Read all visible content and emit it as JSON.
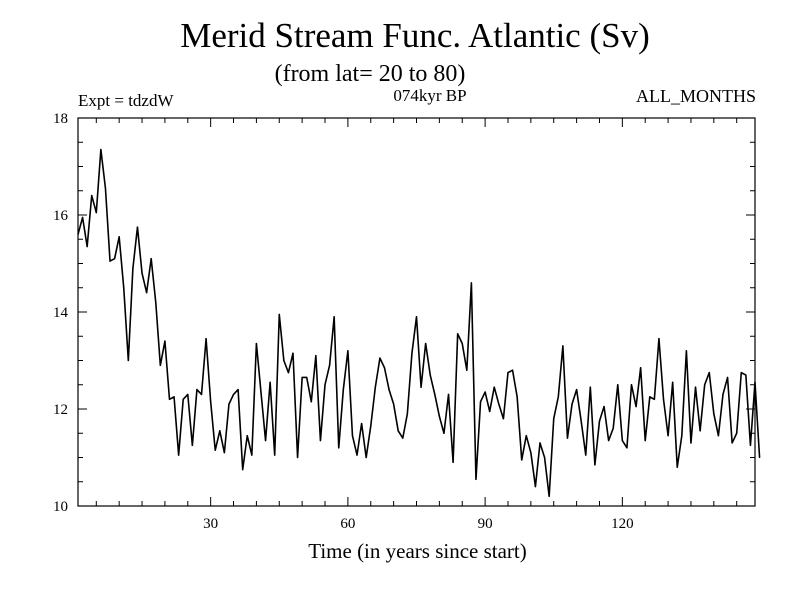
{
  "chart_data": {
    "type": "line",
    "title": "Merid Stream Func. Atlantic (Sv)",
    "subtitle": "(from lat= 20 to 80)",
    "annotations": {
      "left": "Expt = tdzdW",
      "center": "074kyr BP",
      "right": "ALL_MONTHS"
    },
    "xlabel": "Time (in years since start)",
    "ylabel": "",
    "xlim": [
      1,
      149
    ],
    "ylim": [
      10,
      18
    ],
    "x_ticks": [
      30,
      60,
      90,
      120
    ],
    "y_ticks": [
      10,
      12,
      14,
      16,
      18
    ],
    "grid": false,
    "series": [
      {
        "name": "Merid Stream Func.",
        "x_start": 1,
        "x_step": 1,
        "values": [
          15.6,
          15.95,
          15.35,
          16.4,
          16.05,
          17.35,
          16.55,
          15.05,
          15.1,
          15.55,
          14.5,
          13.0,
          14.9,
          15.75,
          14.8,
          14.4,
          15.1,
          14.2,
          12.9,
          13.4,
          12.2,
          12.25,
          11.05,
          12.2,
          12.3,
          11.25,
          12.4,
          12.3,
          13.45,
          12.15,
          11.15,
          11.55,
          11.1,
          12.1,
          12.3,
          12.4,
          10.75,
          11.45,
          11.05,
          13.35,
          12.35,
          11.35,
          12.55,
          11.05,
          13.95,
          13.0,
          12.75,
          13.15,
          11.0,
          12.65,
          12.65,
          12.15,
          13.1,
          11.35,
          12.5,
          12.9,
          13.9,
          11.2,
          12.4,
          13.2,
          11.45,
          11.05,
          11.7,
          11.0,
          11.65,
          12.45,
          13.05,
          12.85,
          12.4,
          12.1,
          11.55,
          11.4,
          11.9,
          13.15,
          13.9,
          12.45,
          13.35,
          12.7,
          12.3,
          11.85,
          11.5,
          12.3,
          10.9,
          13.55,
          13.35,
          12.8,
          14.6,
          10.55,
          12.15,
          12.35,
          11.95,
          12.45,
          12.1,
          11.8,
          12.75,
          12.8,
          12.25,
          10.95,
          11.45,
          11.1,
          10.4,
          11.3,
          11.0,
          10.2,
          11.8,
          12.25,
          13.3,
          11.4,
          12.1,
          12.4,
          11.75,
          11.05,
          12.45,
          10.85,
          11.75,
          12.05,
          11.35,
          11.6,
          12.5,
          11.35,
          11.2,
          12.5,
          12.05,
          12.85,
          11.35,
          12.25,
          12.2,
          13.45,
          12.2,
          11.45,
          12.55,
          10.8,
          11.45,
          13.2,
          11.3,
          12.45,
          11.55,
          12.5,
          12.75,
          11.9,
          11.45,
          12.3,
          12.65,
          11.3,
          11.5,
          12.75,
          12.7,
          11.25,
          12.55,
          11.0
        ]
      }
    ]
  }
}
